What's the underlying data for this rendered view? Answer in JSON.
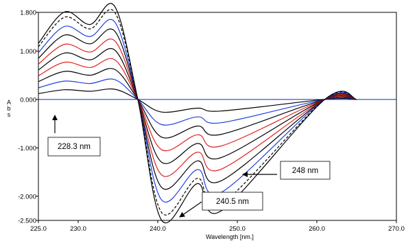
{
  "chart_data": {
    "type": "line",
    "title": "",
    "xlabel": "Wavelength [nm.]",
    "ylabel": "Abs",
    "xlim": [
      225.0,
      270.0
    ],
    "ylim": [
      -2.5,
      1.8
    ],
    "grid": false,
    "legend": "none",
    "x_ticks": [
      225.0,
      230.0,
      240.0,
      250.0,
      260.0,
      270.0
    ],
    "x_tick_labels": [
      "225.0",
      "230.0",
      "240.0",
      "250.0",
      "260.0",
      "270.0"
    ],
    "y_ticks": [
      1.8,
      1.0,
      0.0,
      -1.0,
      -2.0,
      -2.5
    ],
    "y_tick_labels": [
      "1.800",
      "1.000",
      "0.000",
      "-1.000",
      "-2.000",
      "-2.500"
    ],
    "series": [
      {
        "color": "#000000",
        "dashed": false,
        "values": [
          0.12,
          0.2,
          0.17,
          0.21,
          0.0,
          -0.26,
          -0.18,
          -0.24,
          0.0,
          0.0
        ]
      },
      {
        "color": "#1f3fe0",
        "dashed": false,
        "values": [
          0.24,
          0.38,
          0.33,
          0.41,
          0.0,
          -0.52,
          -0.36,
          -0.48,
          0.0,
          0.0
        ]
      },
      {
        "color": "#000000",
        "dashed": false,
        "values": [
          0.37,
          0.58,
          0.5,
          0.62,
          0.0,
          -0.78,
          -0.55,
          -0.72,
          0.0,
          0.0
        ]
      },
      {
        "color": "#e02020",
        "dashed": false,
        "values": [
          0.49,
          0.77,
          0.66,
          0.82,
          0.0,
          -1.04,
          -0.73,
          -0.96,
          0.0,
          0.0
        ]
      },
      {
        "color": "#000000",
        "dashed": false,
        "values": [
          0.61,
          0.96,
          0.82,
          1.02,
          0.0,
          -1.3,
          -0.91,
          -1.2,
          0.0,
          0.0
        ]
      },
      {
        "color": "#e02020",
        "dashed": false,
        "values": [
          0.73,
          1.14,
          0.98,
          1.21,
          0.0,
          -1.56,
          -1.09,
          -1.44,
          0.0,
          0.0
        ]
      },
      {
        "color": "#000000",
        "dashed": false,
        "values": [
          0.85,
          1.33,
          1.15,
          1.41,
          0.0,
          -1.82,
          -1.27,
          -1.68,
          0.0,
          0.0
        ]
      },
      {
        "color": "#1f3fe0",
        "dashed": false,
        "values": [
          0.97,
          1.51,
          1.3,
          1.6,
          0.0,
          -2.08,
          -1.45,
          -1.92,
          0.0,
          0.0
        ]
      },
      {
        "color": "#000000",
        "dashed": true,
        "values": [
          1.09,
          1.7,
          1.46,
          1.8,
          0.0,
          -2.34,
          -1.63,
          -2.16,
          0.0,
          0.0
        ]
      },
      {
        "color": "#000000",
        "dashed": false,
        "values": [
          1.16,
          1.81,
          1.55,
          1.92,
          0.0,
          -2.5,
          -1.74,
          -2.3,
          0.0,
          0.0
        ]
      }
    ],
    "shape_x": [
      225.0,
      228.3,
      231.5,
      234.6,
      237.5,
      240.5,
      245.0,
      248.0,
      261.0,
      265.0
    ],
    "baseline": {
      "x": [
        225.0,
        270.0
      ],
      "color": "#1f3fe0"
    },
    "annotations": [
      {
        "text": "228.3 nm",
        "target_x": 228.3,
        "target_y": 0.0
      },
      {
        "text": "240.5 nm",
        "target_x": 240.5,
        "target_y": -2.5
      },
      {
        "text": "248 nm",
        "target_x": 248.0,
        "target_y": -2.3
      }
    ]
  }
}
